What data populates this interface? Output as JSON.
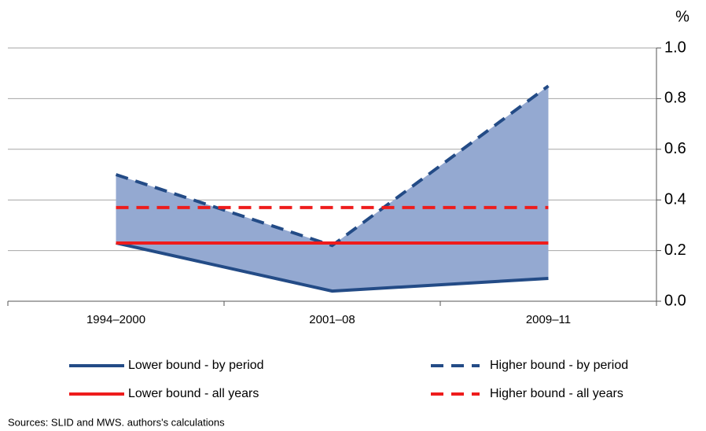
{
  "chart_data": {
    "type": "line",
    "categories": [
      "1994–2000",
      "2001–08",
      "2009–11"
    ],
    "series": [
      {
        "name": "Lower bound - by period",
        "color": "#234b86",
        "style": "solid",
        "values": [
          0.23,
          0.04,
          0.09
        ]
      },
      {
        "name": "Higher bound - by period",
        "color": "#234b86",
        "style": "dashed",
        "values": [
          0.5,
          0.22,
          0.85
        ]
      },
      {
        "name": "Lower bound - all years",
        "color": "#ee1c1c",
        "style": "solid",
        "values": [
          0.23,
          0.23,
          0.23
        ]
      },
      {
        "name": "Higher bound - all years",
        "color": "#ee1c1c",
        "style": "dashed",
        "values": [
          0.37,
          0.37,
          0.37
        ]
      }
    ],
    "area_between": [
      0,
      1
    ],
    "area_color": "#94a9d1",
    "y_axis_label": "%",
    "y_axis_side": "right",
    "ylim": [
      0,
      1
    ],
    "yticks": [
      {
        "value": 0,
        "label": "0.0"
      },
      0.2,
      0.4,
      0.6,
      0.8,
      {
        "value": 1,
        "label": "1.0"
      }
    ],
    "grid": true,
    "source": "Sources: SLID and MWS. authors's calculations"
  }
}
